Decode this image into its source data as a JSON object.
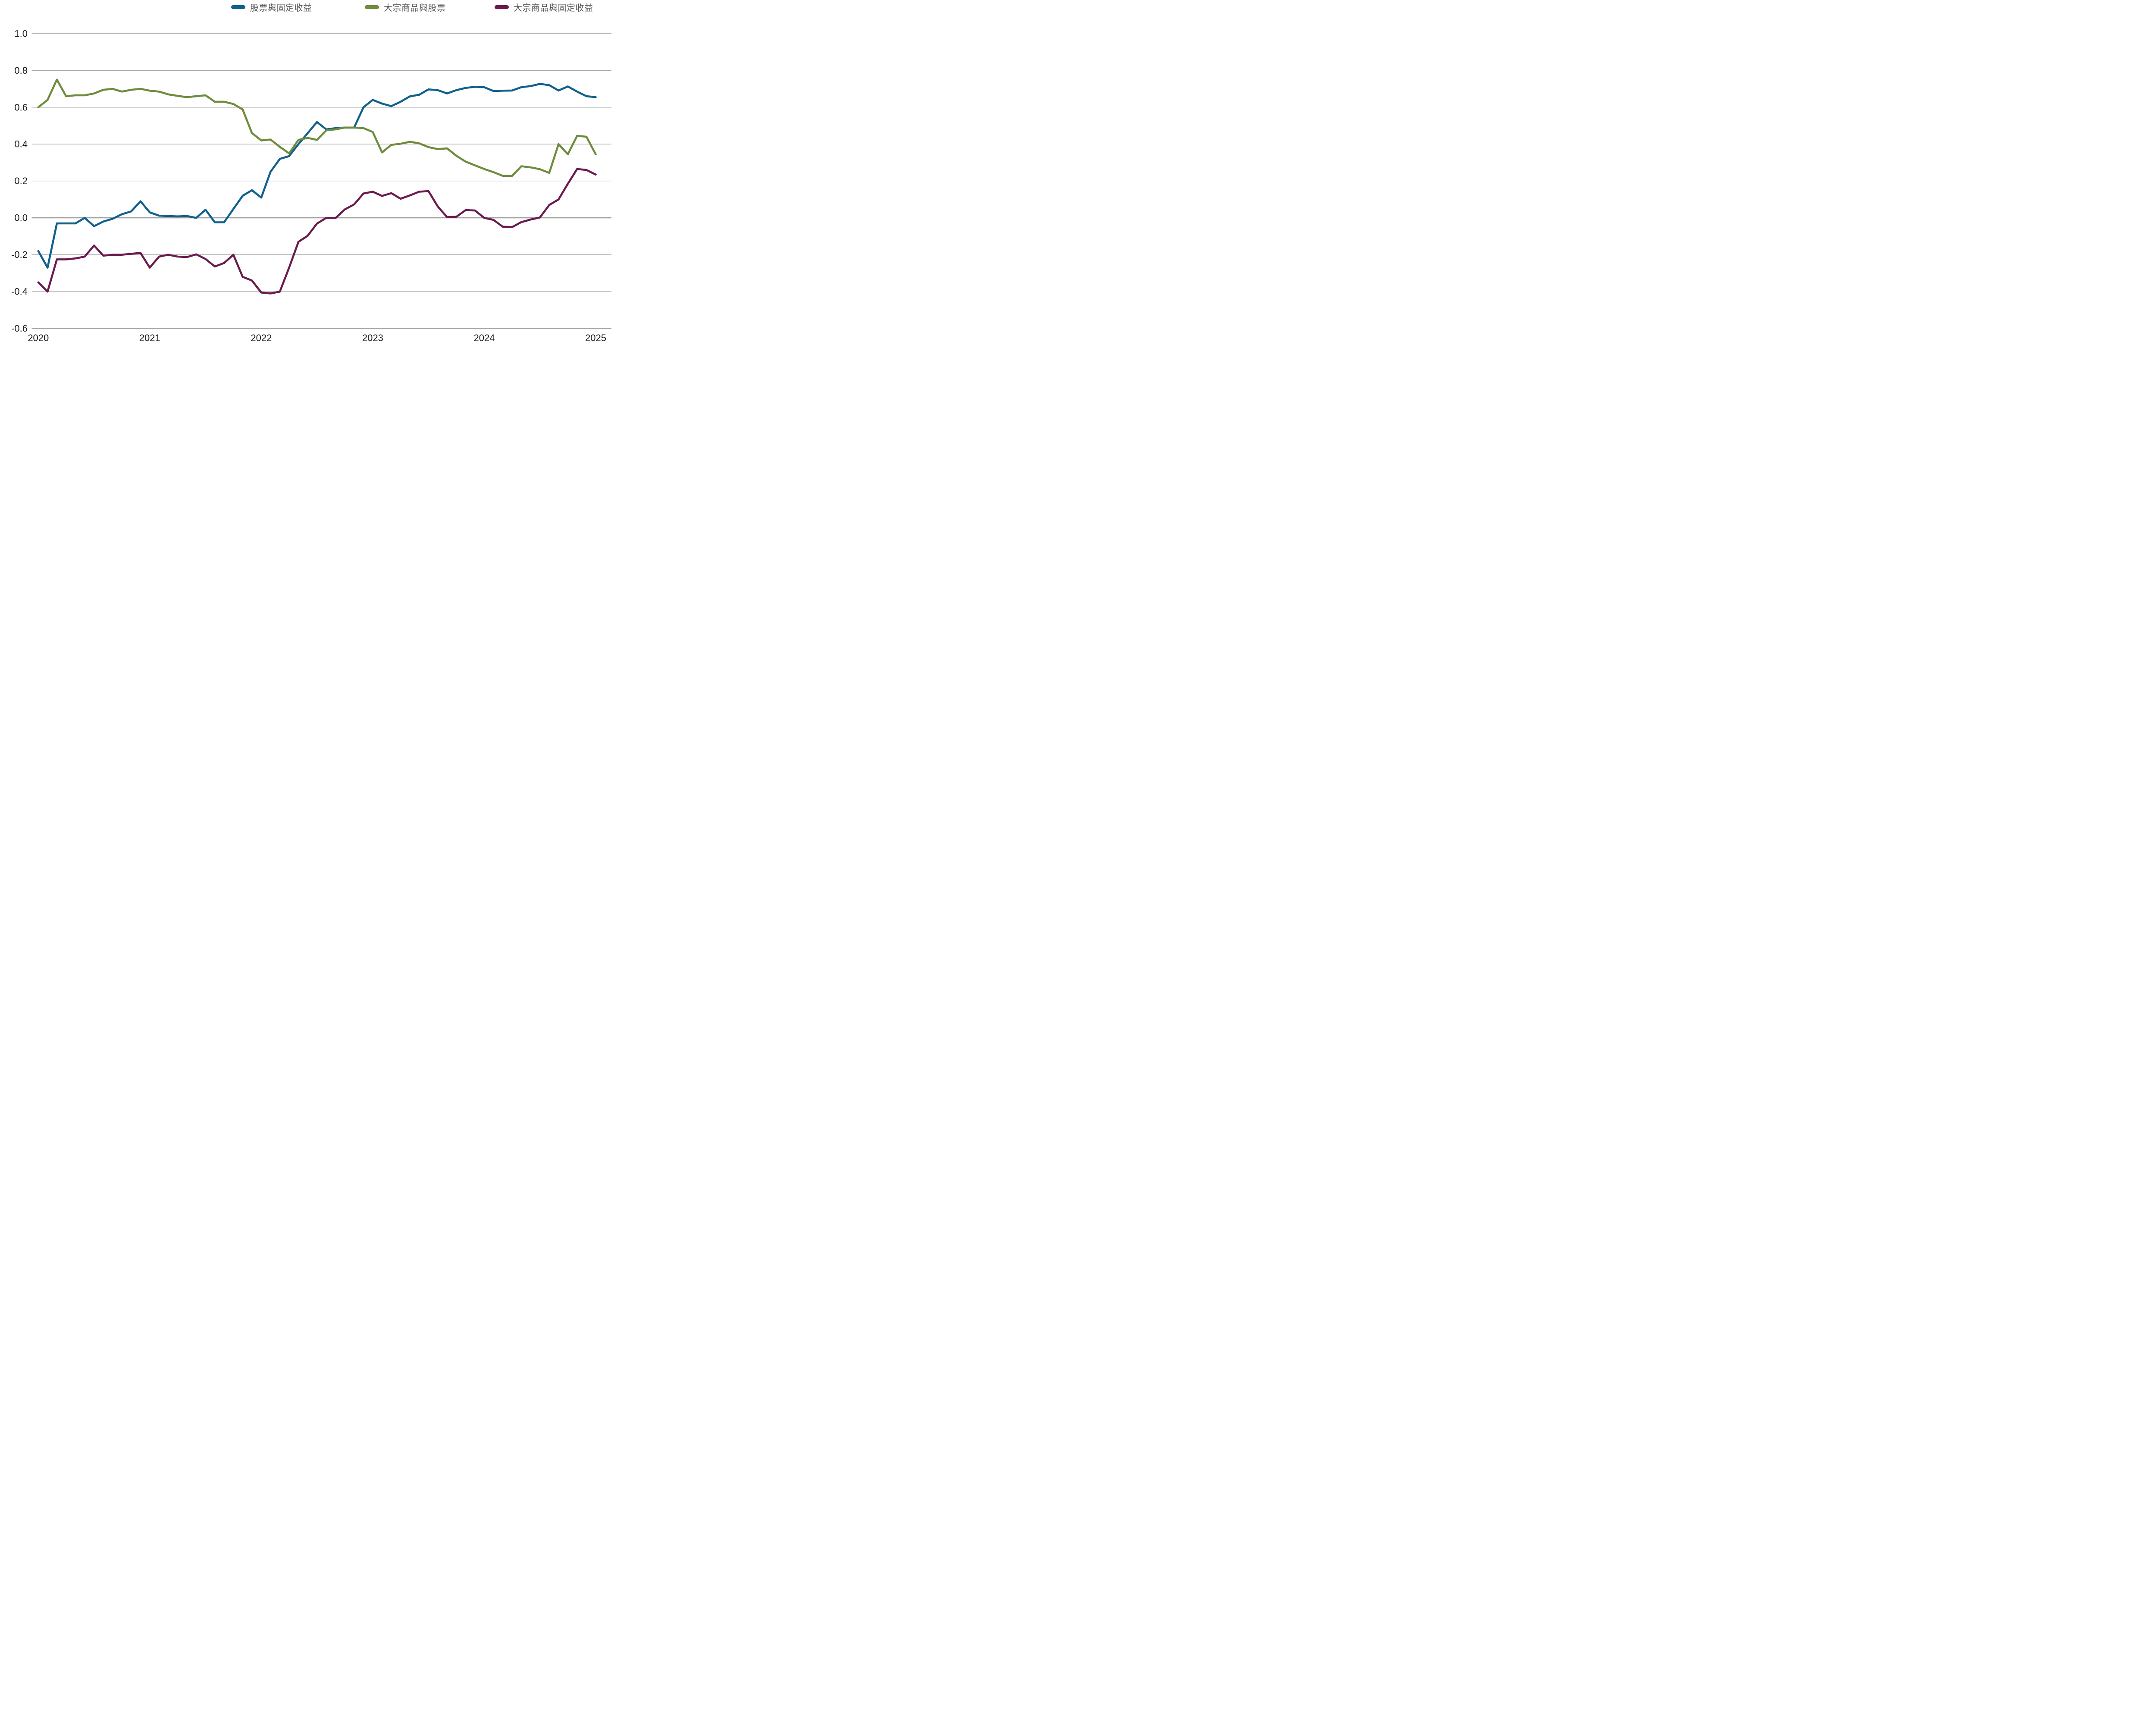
{
  "chart_data": {
    "type": "line",
    "title": "",
    "subtitle": "",
    "x_unit": "month",
    "x_start": "2020-01",
    "x_end": "2025-01",
    "points_per_series": 61,
    "x_ticks": [
      "2020",
      "2021",
      "2022",
      "2023",
      "2024",
      "2025"
    ],
    "ylim": [
      -0.6,
      1.0
    ],
    "yticks": [
      {
        "value": 1.0,
        "label": "1.0"
      },
      {
        "value": 0.8,
        "label": "0.8"
      },
      {
        "value": 0.6,
        "label": "0.6"
      },
      {
        "value": 0.4,
        "label": "0.4"
      },
      {
        "value": 0.2,
        "label": "0.2"
      },
      {
        "value": 0.0,
        "label": "0.0"
      },
      {
        "value": -0.2,
        "label": "-0.2"
      },
      {
        "value": -0.4,
        "label": "-0.4"
      },
      {
        "value": -0.6,
        "label": "-0.6"
      }
    ],
    "grid": "horizontal",
    "grid_color": "#9c9c9c",
    "zero_line_color": "#8a8a8a",
    "tick_color": "#1d1d1d",
    "legend_position": "top",
    "series": [
      {
        "id": "equity-fixed-income",
        "name": "股票與固定收益",
        "color": "#11608d",
        "values": [
          -0.18,
          -0.27,
          -0.03,
          -0.03,
          -0.03,
          0.0,
          -0.045,
          -0.02,
          -0.005,
          0.02,
          0.035,
          0.09,
          0.03,
          0.012,
          0.01,
          0.008,
          0.01,
          0.0,
          0.044,
          -0.024,
          -0.024,
          0.048,
          0.12,
          0.15,
          0.11,
          0.25,
          0.32,
          0.335,
          0.4,
          0.46,
          0.52,
          0.48,
          0.487,
          0.49,
          0.49,
          0.6,
          0.64,
          0.62,
          0.606,
          0.63,
          0.659,
          0.668,
          0.697,
          0.693,
          0.675,
          0.693,
          0.705,
          0.711,
          0.709,
          0.688,
          0.69,
          0.691,
          0.709,
          0.715,
          0.727,
          0.72,
          0.691,
          0.713,
          0.685,
          0.66,
          0.655
        ]
      },
      {
        "id": "commodities-equities",
        "name": "大宗商品與股票",
        "color": "#6e8c3c",
        "values": [
          0.6,
          0.64,
          0.75,
          0.66,
          0.665,
          0.665,
          0.675,
          0.695,
          0.7,
          0.685,
          0.695,
          0.7,
          0.69,
          0.685,
          0.67,
          0.662,
          0.655,
          0.66,
          0.665,
          0.63,
          0.63,
          0.618,
          0.588,
          0.46,
          0.42,
          0.425,
          0.385,
          0.35,
          0.423,
          0.434,
          0.423,
          0.475,
          0.48,
          0.49,
          0.49,
          0.487,
          0.466,
          0.355,
          0.396,
          0.402,
          0.413,
          0.404,
          0.384,
          0.373,
          0.377,
          0.337,
          0.305,
          0.285,
          0.265,
          0.248,
          0.228,
          0.228,
          0.28,
          0.274,
          0.264,
          0.244,
          0.4,
          0.345,
          0.445,
          0.44,
          0.345
        ]
      },
      {
        "id": "commodities-fixed-income",
        "name": "大宗商品與固定收益",
        "color": "#6a1a4d",
        "values": [
          -0.35,
          -0.4,
          -0.225,
          -0.225,
          -0.22,
          -0.21,
          -0.15,
          -0.205,
          -0.2,
          -0.2,
          -0.195,
          -0.19,
          -0.27,
          -0.21,
          -0.2,
          -0.21,
          -0.213,
          -0.198,
          -0.223,
          -0.264,
          -0.245,
          -0.2,
          -0.32,
          -0.34,
          -0.405,
          -0.41,
          -0.4,
          -0.27,
          -0.13,
          -0.097,
          -0.031,
          0.0,
          -0.001,
          0.046,
          0.073,
          0.132,
          0.142,
          0.119,
          0.134,
          0.104,
          0.122,
          0.142,
          0.145,
          0.062,
          0.004,
          0.006,
          0.042,
          0.04,
          0.0,
          -0.011,
          -0.048,
          -0.05,
          -0.023,
          -0.009,
          0.002,
          0.07,
          0.1,
          0.185,
          0.265,
          0.26,
          0.235
        ]
      }
    ]
  }
}
